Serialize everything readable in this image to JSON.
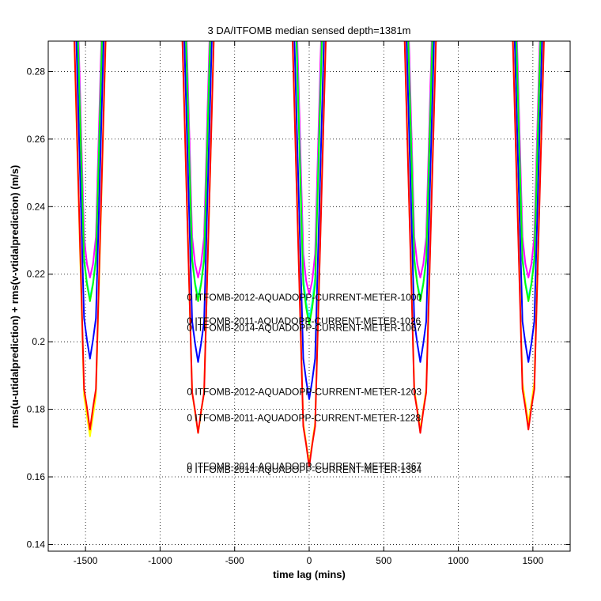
{
  "chart_data": {
    "type": "line",
    "title": "3 DA/ITFOMB median sensed depth=1381m",
    "xlabel": "time lag (mins)",
    "ylabel": "rms(u-utidalprediction) + rms(v-vtidalprediction) (m/s)",
    "xlim": [
      -1750,
      1750
    ],
    "ylim": [
      0.138,
      0.289
    ],
    "xticks": [
      -1500,
      -1000,
      -500,
      0,
      500,
      1000,
      1500
    ],
    "xtick_labels": [
      "-1500",
      "-1000",
      "-500",
      "0",
      "500",
      "1000",
      "1500"
    ],
    "yticks": [
      0.14,
      0.16,
      0.18,
      0.2,
      0.22,
      0.24,
      0.26,
      0.28
    ],
    "ytick_labels": [
      "0.14",
      "0.16",
      "0.18",
      "0.2",
      "0.22",
      "0.24",
      "0.26",
      "0.28"
    ],
    "grid": true,
    "dip_centers": [
      -1470,
      -745,
      0,
      745,
      1470
    ],
    "series": [
      {
        "color": "#ff00ff",
        "mins": [
          0.219,
          0.219,
          0.214,
          0.219,
          0.219
        ]
      },
      {
        "color": "#00ffff",
        "mins": [
          0.213,
          0.213,
          0.207,
          0.213,
          0.213
        ]
      },
      {
        "color": "#00ff00",
        "mins": [
          0.212,
          0.212,
          0.205,
          0.212,
          0.212
        ]
      },
      {
        "color": "#0000ff",
        "mins": [
          0.195,
          0.194,
          0.183,
          0.194,
          0.194
        ]
      },
      {
        "color": "#ffff00",
        "mins": [
          0.172,
          0.173,
          0.164,
          0.174,
          0.176
        ]
      },
      {
        "color": "#ff0000",
        "mins": [
          0.174,
          0.173,
          0.163,
          0.173,
          0.174
        ]
      }
    ],
    "annotations": [
      {
        "text": "0 ITFOMB-2012-AQUADOPP-CURRENT-METER-1000",
        "x": -820,
        "y": 0.2122
      },
      {
        "text": "0 ITFOMB-2011-AQUADOPP-CURRENT-METER-1026",
        "x": -820,
        "y": 0.2052
      },
      {
        "text": "0 ITFOMB-2014-AQUADOPP-CURRENT-METER-1067",
        "x": -820,
        "y": 0.2032
      },
      {
        "text": "0 ITFOMB-2012-AQUADOPP-CURRENT-METER-1203",
        "x": -820,
        "y": 0.1842
      },
      {
        "text": "0 ITFOMB-2011-AQUADOPP-CURRENT-METER-1228",
        "x": -820,
        "y": 0.1765
      },
      {
        "text": "0 ITFOMB-2014-AQUADOPP-CURRENT-METER-1367",
        "x": -820,
        "y": 0.1622
      },
      {
        "text": "0 ITFOMB-2014-AQUADOPP-CURRENT-METER-1384",
        "x": -820,
        "y": 0.1612
      }
    ]
  }
}
